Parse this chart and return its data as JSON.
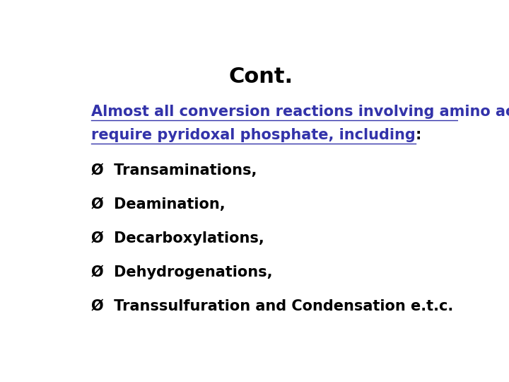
{
  "title": "Cont.",
  "title_color": "#000000",
  "title_fontsize": 22,
  "title_bold": true,
  "background_color": "#ffffff",
  "intro_text_line1": "Almost all conversion reactions involving amino acids",
  "intro_text_line2": "require pyridoxal phosphate, including",
  "intro_text_colon": ":",
  "intro_color": "#3333aa",
  "intro_fontsize": 15,
  "intro_bold": true,
  "items": [
    "Transaminations,",
    "Deamination,",
    "Decarboxylations,",
    "Dehydrogenations,",
    "Transsulfuration and Condensation e.t.c."
  ],
  "item_color": "#000000",
  "item_fontsize": 15,
  "item_bold": true,
  "bullet": "Ø"
}
